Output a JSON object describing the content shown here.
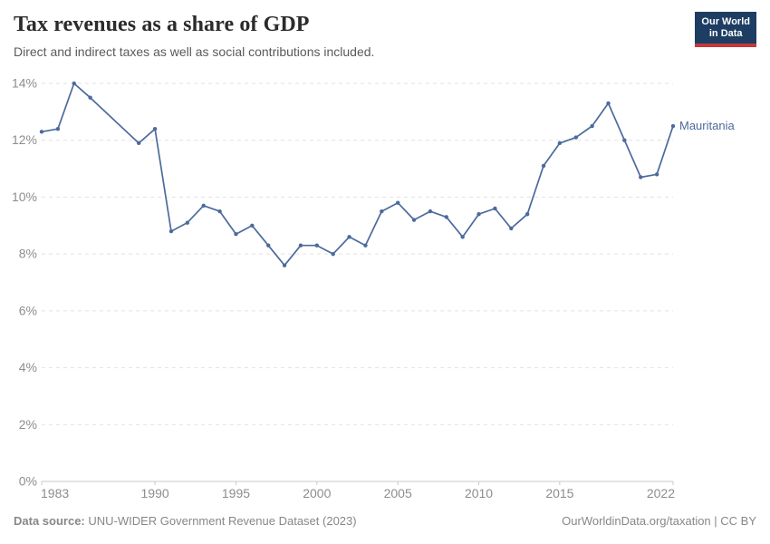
{
  "header": {
    "title": "Tax revenues as a share of GDP",
    "subtitle": "Direct and indirect taxes as well as social contributions included.",
    "logo": {
      "line1": "Our World",
      "line2": "in Data",
      "bg_color": "#1d3d63",
      "bar_color": "#c5383b"
    }
  },
  "chart_data": {
    "type": "line",
    "title": "Tax revenues as a share of GDP",
    "xlabel": "",
    "ylabel": "",
    "xlim": [
      1983,
      2022
    ],
    "ylim": [
      0,
      14
    ],
    "x_ticks": [
      1983,
      1990,
      1995,
      2000,
      2005,
      2010,
      2015,
      2022
    ],
    "y_ticks": [
      0,
      2,
      4,
      6,
      8,
      10,
      12,
      14
    ],
    "y_tick_suffix": "%",
    "grid": "dashed-horizontal",
    "legend_position": "end-of-line",
    "series": [
      {
        "name": "Mauritania",
        "color": "#4c6a9c",
        "years": [
          1983,
          1984,
          1985,
          1986,
          1987,
          1988,
          1989,
          1990,
          1991,
          1992,
          1993,
          1994,
          1995,
          1996,
          1997,
          1998,
          1999,
          2000,
          2001,
          2002,
          2003,
          2004,
          2005,
          2006,
          2007,
          2008,
          2009,
          2010,
          2011,
          2012,
          2013,
          2014,
          2015,
          2016,
          2017,
          2018,
          2019,
          2020,
          2021,
          2022
        ],
        "values": [
          12.3,
          12.4,
          14.0,
          13.5,
          null,
          null,
          11.9,
          12.4,
          8.8,
          9.1,
          9.7,
          9.5,
          8.7,
          9.0,
          8.3,
          7.6,
          8.3,
          8.3,
          8.0,
          8.6,
          8.3,
          9.5,
          9.8,
          9.2,
          9.5,
          9.3,
          8.6,
          9.4,
          9.6,
          8.9,
          9.4,
          11.1,
          11.9,
          12.1,
          12.5,
          13.3,
          12.0,
          10.7,
          10.8,
          12.5
        ]
      }
    ]
  },
  "footer": {
    "source_label": "Data source:",
    "source_text": " UNU-WIDER Government Revenue Dataset (2023)",
    "credit": "OurWorldinData.org/taxation | CC BY"
  }
}
